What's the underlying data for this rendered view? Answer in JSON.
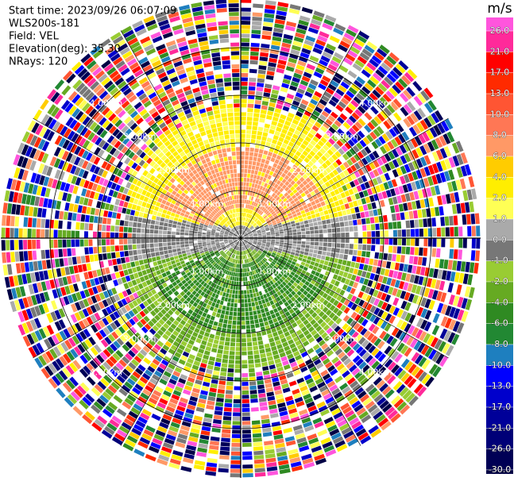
{
  "header": {
    "lines": [
      "Start time: 2023/09/26 06:07:09",
      "WLS200s-181",
      "Field: VEL",
      "Elevation(deg): 35.30",
      "NRays: 120"
    ]
  },
  "rings": {
    "labels": [
      "1.00km",
      "2.00km",
      "3.00km",
      "4.00km"
    ]
  },
  "colorbar": {
    "unit": "m/s",
    "ticks": [
      {
        "value": 26,
        "label": "26.0"
      },
      {
        "value": 21,
        "label": "21.0"
      },
      {
        "value": 17,
        "label": "17.0"
      },
      {
        "value": 13,
        "label": "13.0"
      },
      {
        "value": 10,
        "label": "10.0"
      },
      {
        "value": 8,
        "label": "8.0"
      },
      {
        "value": 6,
        "label": "6.0"
      },
      {
        "value": 4,
        "label": "4.0"
      },
      {
        "value": 2,
        "label": "2.0"
      },
      {
        "value": 1,
        "label": "1.0"
      },
      {
        "value": 0,
        "label": "0.0"
      },
      {
        "value": -1,
        "label": "-1.0"
      },
      {
        "value": -2,
        "label": "-2.0"
      },
      {
        "value": -4,
        "label": "-4.0"
      },
      {
        "value": -6,
        "label": "-6.0"
      },
      {
        "value": -8,
        "label": "-8.0"
      },
      {
        "value": -10,
        "label": "-10.0"
      },
      {
        "value": -13,
        "label": "-13.0"
      },
      {
        "value": -17,
        "label": "-17.0"
      },
      {
        "value": -21,
        "label": "-21.0"
      },
      {
        "value": -26,
        "label": "-26.0"
      },
      {
        "value": -30,
        "label": "-30.0"
      }
    ],
    "colors": [
      "#ff55dd",
      "#ff2a9a",
      "#ff0000",
      "#ff2a00",
      "#ff5533",
      "#ff7755",
      "#ff9966",
      "#ffcc00",
      "#ffee00",
      "#ffff55",
      "#aaaaaa",
      "#777777",
      "#99cc33",
      "#66aa22",
      "#2f8a22",
      "#228833",
      "#1e7fbf",
      "#0000ff",
      "#0000cc",
      "#000099",
      "#000077",
      "#000055",
      "#000044"
    ]
  }
}
